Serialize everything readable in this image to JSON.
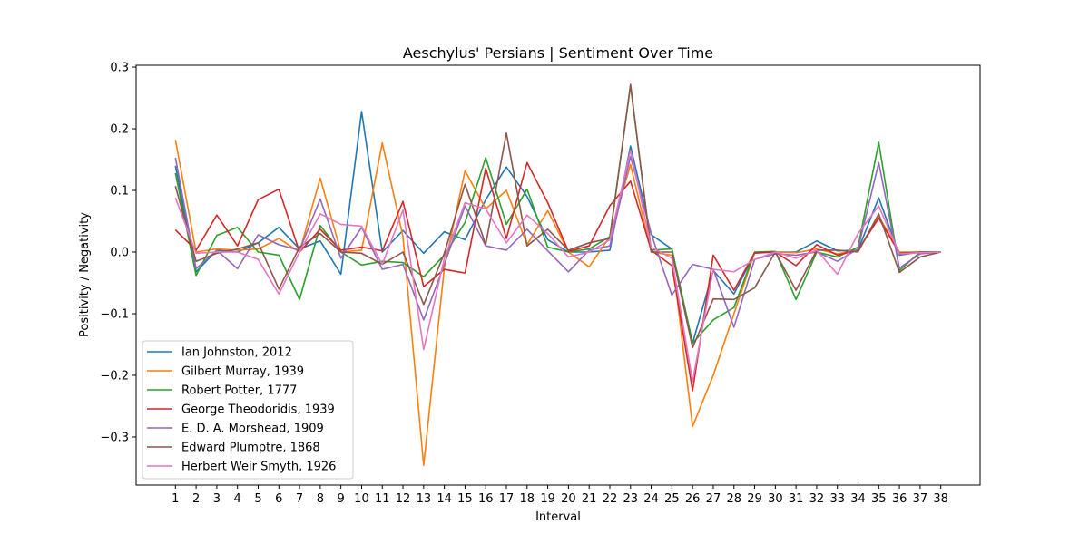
{
  "chart_data": {
    "type": "line",
    "title": "Aeschylus' Persians | Sentiment Over Time",
    "xlabel": "Interval",
    "ylabel": "Positivity / Negativity",
    "x": [
      0,
      1,
      2,
      3,
      4,
      5,
      6,
      7,
      8,
      9,
      10,
      11,
      12,
      13,
      14,
      15,
      16,
      17,
      18,
      19,
      20,
      21,
      22,
      23,
      24,
      25,
      26,
      27,
      28,
      29,
      30,
      31,
      32,
      33,
      34,
      35,
      36,
      37
    ],
    "xticks": [
      "1",
      "2",
      "3",
      "4",
      "5",
      "6",
      "7",
      "8",
      "9",
      "10",
      "11",
      "12",
      "13",
      "14",
      "15",
      "16",
      "17",
      "18",
      "19",
      "20",
      "21",
      "22",
      "23",
      "24",
      "25",
      "26",
      "27",
      "28",
      "29",
      "30",
      "31",
      "32",
      "33",
      "34",
      "35",
      "36",
      "37",
      "38"
    ],
    "xlim": [
      -1.9,
      38.9
    ],
    "ylim": [
      -0.378,
      0.303
    ],
    "yticks": [
      -0.3,
      -0.2,
      -0.1,
      0.0,
      0.1,
      0.2,
      0.3
    ],
    "ytick_labels": [
      "−0.3",
      "−0.2",
      "−0.1",
      "0.0",
      "0.1",
      "0.2",
      "0.3"
    ],
    "grid": false,
    "legend_position": "lower-left",
    "series": [
      {
        "name": "Ian Johnston, 2012",
        "color": "#1f77b4",
        "values": [
          0.14,
          -0.032,
          0.003,
          0.0,
          0.015,
          0.04,
          0.005,
          0.018,
          -0.036,
          0.228,
          0.0,
          0.035,
          -0.002,
          0.033,
          0.02,
          0.085,
          0.138,
          0.09,
          0.02,
          0.0,
          0.0,
          0.003,
          0.172,
          0.028,
          0.005,
          -0.148,
          -0.03,
          -0.068,
          -0.002,
          0.0,
          0.0,
          0.018,
          0.002,
          0.003,
          0.088,
          -0.005,
          0.0,
          0.0
        ]
      },
      {
        "name": "Gilbert Murray, 1939",
        "color": "#ff7f0e",
        "values": [
          0.182,
          0.0,
          0.005,
          0.003,
          0.005,
          0.022,
          0.0,
          0.12,
          0.0,
          0.003,
          0.177,
          0.025,
          -0.346,
          -0.025,
          0.132,
          0.07,
          0.1,
          0.012,
          0.067,
          0.0,
          -0.024,
          0.025,
          0.142,
          0.0,
          -0.005,
          -0.283,
          -0.2,
          -0.1,
          -0.001,
          0.0,
          -0.001,
          0.005,
          -0.003,
          0.003,
          0.058,
          0.0,
          0.0,
          0.0
        ]
      },
      {
        "name": "Robert Potter, 1777",
        "color": "#2ca02c",
        "values": [
          0.128,
          -0.038,
          0.027,
          0.04,
          0.0,
          -0.005,
          -0.077,
          0.043,
          0.0,
          -0.021,
          -0.015,
          -0.017,
          -0.04,
          -0.005,
          0.048,
          0.153,
          0.045,
          0.102,
          0.008,
          0.0,
          0.005,
          0.025,
          0.27,
          0.003,
          0.005,
          -0.148,
          -0.11,
          -0.09,
          0.0,
          0.001,
          -0.077,
          0.0,
          -0.008,
          0.008,
          0.178,
          -0.03,
          0.0,
          0.0
        ]
      },
      {
        "name": "George Theodoridis, 1939",
        "color": "#d62728",
        "values": [
          0.036,
          0.003,
          0.06,
          0.01,
          0.085,
          0.102,
          0.0,
          0.037,
          0.003,
          0.008,
          0.002,
          0.082,
          -0.056,
          -0.028,
          -0.034,
          0.136,
          0.022,
          0.145,
          0.08,
          0.001,
          0.01,
          0.075,
          0.115,
          0.003,
          -0.022,
          -0.225,
          -0.005,
          -0.062,
          -0.001,
          0.0,
          -0.022,
          0.012,
          -0.005,
          0.003,
          0.055,
          -0.002,
          0.0,
          0.0
        ]
      },
      {
        "name": "E. D. A. Morshead, 1909",
        "color": "#9467bd",
        "values": [
          0.153,
          -0.027,
          0.003,
          -0.027,
          0.028,
          0.012,
          0.003,
          0.086,
          -0.01,
          0.04,
          -0.028,
          -0.02,
          -0.11,
          -0.02,
          0.075,
          0.01,
          0.003,
          0.037,
          0.002,
          -0.032,
          0.003,
          0.01,
          0.155,
          0.03,
          -0.07,
          -0.02,
          -0.028,
          -0.122,
          -0.012,
          -0.003,
          -0.005,
          0.0,
          -0.015,
          0.005,
          0.145,
          -0.026,
          -0.003,
          0.0
        ]
      },
      {
        "name": "Edward Plumptre, 1868",
        "color": "#8c564b",
        "values": [
          0.107,
          -0.015,
          -0.002,
          0.005,
          0.015,
          -0.06,
          0.008,
          0.03,
          0.0,
          -0.002,
          -0.02,
          0.0,
          -0.085,
          -0.002,
          0.11,
          0.012,
          0.193,
          0.01,
          0.037,
          0.003,
          0.015,
          0.022,
          0.272,
          0.0,
          0.0,
          -0.155,
          -0.076,
          -0.077,
          -0.058,
          0.0,
          -0.062,
          0.003,
          0.003,
          0.0,
          0.062,
          -0.033,
          -0.008,
          0.0
        ]
      },
      {
        "name": "Herbert Weir Smyth, 1926",
        "color": "#e377c2",
        "values": [
          0.088,
          -0.002,
          0.0,
          0.0,
          -0.012,
          -0.068,
          0.0,
          0.062,
          0.045,
          0.042,
          -0.02,
          0.068,
          -0.158,
          -0.01,
          0.08,
          0.07,
          0.015,
          0.06,
          0.03,
          -0.008,
          0.0,
          0.02,
          0.165,
          0.008,
          -0.01,
          -0.21,
          -0.028,
          -0.032,
          -0.012,
          0.0,
          -0.01,
          0.003,
          -0.036,
          0.03,
          0.075,
          -0.003,
          -0.001,
          0.0
        ]
      }
    ]
  }
}
